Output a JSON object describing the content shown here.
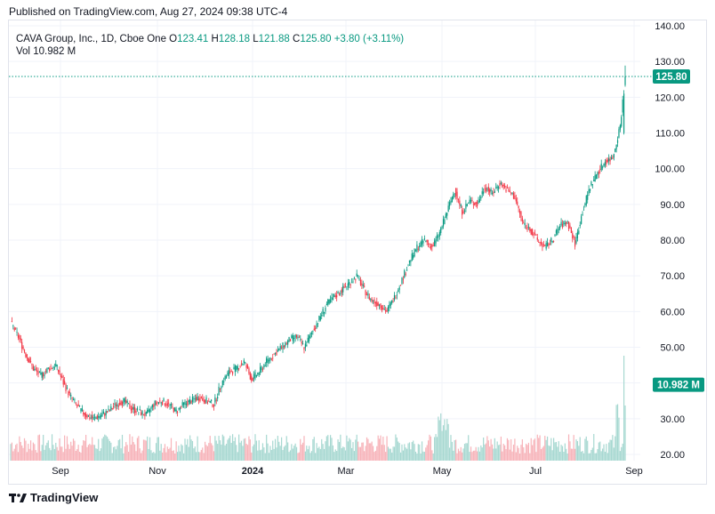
{
  "header": {
    "published": "Published on TradingView.com, Aug 27, 2024 09:38 UTC-4"
  },
  "legend": {
    "symbol": "CAVA Group, Inc., 1D, Cboe One",
    "o_label": "O",
    "o_value": "123.41",
    "h_label": "H",
    "h_value": "128.18",
    "l_label": "L",
    "l_value": "121.88",
    "c_label": "C",
    "c_value": "125.80",
    "change": "+3.80 (+3.11%)",
    "vol_label": "Vol",
    "vol_value": "10.982 M"
  },
  "footer": {
    "brand": "TradingView",
    "brand_icon": "tradingview-logo-icon"
  },
  "colors": {
    "up": "#089981",
    "down": "#f23645",
    "up_vol": "#a7d8d1",
    "down_vol": "#f7b3b9",
    "grid": "#f0f3fa",
    "axis_text": "#131722"
  },
  "chart_data": {
    "type": "candlestick",
    "title": "CAVA Group, Inc., 1D, Cboe One",
    "ylim": [
      20,
      140
    ],
    "y_ticks": [
      "20.00",
      "30.00",
      "40.00",
      "50.00",
      "60.00",
      "70.00",
      "80.00",
      "90.00",
      "100.00",
      "110.00",
      "120.00",
      "130.00",
      "140.00"
    ],
    "x_ticks": [
      "Sep",
      "Nov",
      "2024",
      "Mar",
      "May",
      "Jul",
      "Sep"
    ],
    "x_tick_bold": [
      false,
      false,
      true,
      false,
      false,
      false,
      false
    ],
    "last_price_label": "125.80",
    "last_price": 125.8,
    "volume_label": "10.982 M",
    "volume_label_price": 39.5,
    "grid": true,
    "close_path": [
      [
        0,
        57
      ],
      [
        6,
        53
      ],
      [
        12,
        48
      ],
      [
        18,
        44
      ],
      [
        24,
        42
      ],
      [
        30,
        44
      ],
      [
        36,
        45
      ],
      [
        42,
        40
      ],
      [
        48,
        36
      ],
      [
        54,
        33
      ],
      [
        60,
        31
      ],
      [
        66,
        30
      ],
      [
        72,
        31
      ],
      [
        78,
        32
      ],
      [
        84,
        34
      ],
      [
        90,
        35
      ],
      [
        96,
        33
      ],
      [
        102,
        32
      ],
      [
        108,
        31
      ],
      [
        114,
        34
      ],
      [
        120,
        35
      ],
      [
        126,
        34
      ],
      [
        132,
        32
      ],
      [
        138,
        34
      ],
      [
        144,
        35
      ],
      [
        150,
        36
      ],
      [
        156,
        35
      ],
      [
        162,
        34
      ],
      [
        168,
        40
      ],
      [
        174,
        43
      ],
      [
        180,
        44
      ],
      [
        186,
        46
      ],
      [
        192,
        41
      ],
      [
        198,
        43
      ],
      [
        204,
        46
      ],
      [
        210,
        48
      ],
      [
        216,
        50
      ],
      [
        222,
        52
      ],
      [
        228,
        53
      ],
      [
        234,
        50
      ],
      [
        240,
        54
      ],
      [
        246,
        58
      ],
      [
        252,
        62
      ],
      [
        258,
        64
      ],
      [
        264,
        66
      ],
      [
        270,
        68
      ],
      [
        276,
        70
      ],
      [
        282,
        66
      ],
      [
        288,
        63
      ],
      [
        294,
        62
      ],
      [
        300,
        60
      ],
      [
        306,
        64
      ],
      [
        312,
        69
      ],
      [
        318,
        74
      ],
      [
        324,
        78
      ],
      [
        330,
        80
      ],
      [
        336,
        78
      ],
      [
        342,
        82
      ],
      [
        348,
        88
      ],
      [
        354,
        94
      ],
      [
        360,
        88
      ],
      [
        366,
        91
      ],
      [
        372,
        90
      ],
      [
        378,
        95
      ],
      [
        384,
        93
      ],
      [
        390,
        96
      ],
      [
        396,
        94
      ],
      [
        402,
        92
      ],
      [
        408,
        85
      ],
      [
        414,
        83
      ],
      [
        420,
        80
      ],
      [
        426,
        78
      ],
      [
        432,
        80
      ],
      [
        438,
        84
      ],
      [
        444,
        85
      ],
      [
        450,
        79
      ],
      [
        456,
        88
      ],
      [
        462,
        95
      ],
      [
        468,
        99
      ],
      [
        474,
        102
      ],
      [
        480,
        103
      ],
      [
        486,
        112
      ],
      [
        490,
        125.8
      ]
    ]
  }
}
